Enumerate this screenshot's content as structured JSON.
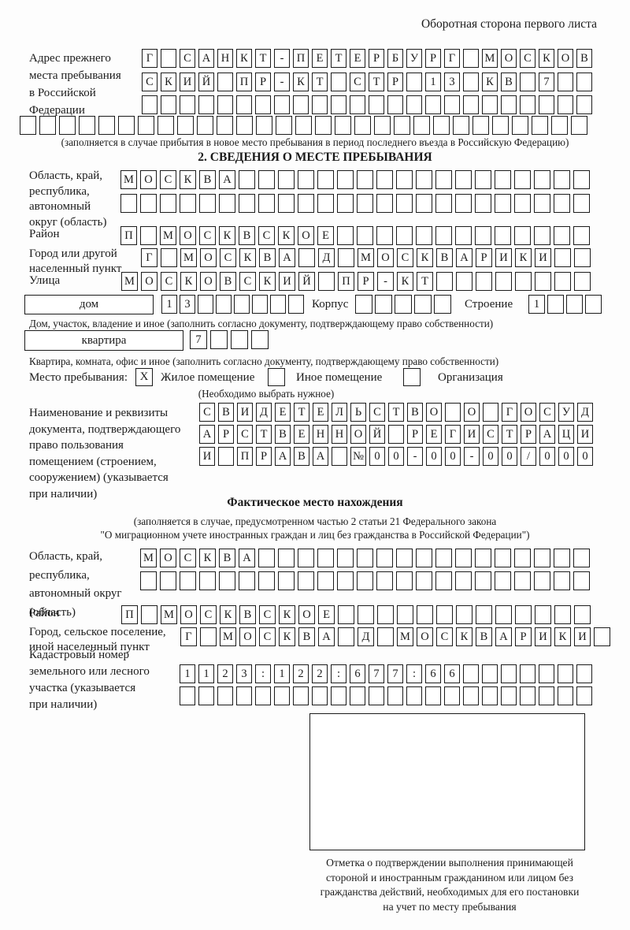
{
  "colors": {
    "ink": "#1b1b1b",
    "paper": "#fdfdfd"
  },
  "header_note": "Оборотная сторона первого листа",
  "prev_address": {
    "label_lines": [
      "Адрес прежнего",
      "места пребывания",
      "в Российской",
      "Федерации"
    ],
    "rows": [
      [
        "Г",
        "",
        "С",
        "А",
        "Н",
        "К",
        "Т",
        "-",
        "П",
        "Е",
        "Т",
        "Е",
        "Р",
        "Б",
        "У",
        "Р",
        "Г",
        "",
        "М",
        "О",
        "С",
        "К",
        "О",
        "В"
      ],
      [
        "С",
        "К",
        "И",
        "Й",
        "",
        "П",
        "Р",
        "-",
        "К",
        "Т",
        "",
        "С",
        "Т",
        "Р",
        "",
        "1",
        "3",
        "",
        "К",
        "В",
        "",
        "7",
        "",
        ""
      ],
      [
        "",
        "",
        "",
        "",
        "",
        "",
        "",
        "",
        "",
        "",
        "",
        "",
        "",
        "",
        "",
        "",
        "",
        "",
        "",
        "",
        "",
        "",
        "",
        ""
      ],
      [
        "",
        "",
        "",
        "",
        "",
        "",
        "",
        "",
        "",
        "",
        "",
        "",
        "",
        "",
        "",
        "",
        "",
        "",
        "",
        "",
        "",
        "",
        "",
        "",
        "",
        "",
        "",
        "",
        ""
      ]
    ],
    "caption": "(заполняется в случае прибытия в новое место пребывания в период последнего въезда в Российскую Федерацию)"
  },
  "section2": {
    "title": "2. СВЕДЕНИЯ О МЕСТЕ ПРЕБЫВАНИЯ",
    "region": {
      "label_lines": [
        "Область, край,",
        "республика,",
        "автономный",
        "округ (область)"
      ],
      "rows": [
        [
          "М",
          "О",
          "С",
          "К",
          "В",
          "А",
          "",
          "",
          "",
          "",
          "",
          "",
          "",
          "",
          "",
          "",
          "",
          "",
          "",
          "",
          "",
          "",
          "",
          ""
        ],
        [
          "",
          "",
          "",
          "",
          "",
          "",
          "",
          "",
          "",
          "",
          "",
          "",
          "",
          "",
          "",
          "",
          "",
          "",
          "",
          "",
          "",
          "",
          "",
          ""
        ]
      ]
    },
    "district": {
      "label": "Район",
      "row": [
        "П",
        "",
        "М",
        "О",
        "С",
        "К",
        "В",
        "С",
        "К",
        "О",
        "Е",
        "",
        "",
        "",
        "",
        "",
        "",
        "",
        "",
        "",
        "",
        "",
        "",
        ""
      ]
    },
    "city": {
      "label_lines": [
        "Город или другой",
        "населенный пункт"
      ],
      "row": [
        "Г",
        "",
        "М",
        "О",
        "С",
        "К",
        "В",
        "А",
        "",
        "Д",
        "",
        "М",
        "О",
        "С",
        "К",
        "В",
        "А",
        "Р",
        "И",
        "К",
        "И",
        "",
        ""
      ]
    },
    "street": {
      "label": "Улица",
      "row": [
        "М",
        "О",
        "С",
        "К",
        "О",
        "В",
        "С",
        "К",
        "И",
        "Й",
        "",
        "П",
        "Р",
        "-",
        "К",
        "Т",
        "",
        "",
        "",
        "",
        "",
        "",
        "",
        ""
      ]
    },
    "house": {
      "box_label": "дом",
      "cells": [
        "1",
        "3",
        "",
        "",
        "",
        "",
        "",
        ""
      ],
      "korpus_label": "Корпус",
      "korpus_cells": [
        "",
        "",
        "",
        "",
        ""
      ],
      "stroenie_label": "Строение",
      "stroenie_cells": [
        "1",
        "",
        "",
        ""
      ]
    },
    "house_caption": "Дом, участок, владение и иное (заполнить согласно документу, подтверждающему право собственности)",
    "apartment": {
      "box_label": "квартира",
      "cells": [
        "7",
        "",
        "",
        ""
      ]
    },
    "apartment_caption": "Квартира, комната, офис и иное (заполнить согласно документу, подтверждающему право собственности)",
    "stay_place": {
      "label": "Место пребывания:",
      "options": [
        {
          "label": "Жилое помещение",
          "value": "X"
        },
        {
          "label": "Иное помещение",
          "value": ""
        },
        {
          "label": "Организация",
          "value": ""
        }
      ],
      "note": "(Необходимо выбрать нужное)"
    },
    "document": {
      "label_lines": [
        "Наименование и реквизиты",
        "документа, подтверждающего",
        "право пользования",
        "помещением (строением,",
        "сооружением) (указывается",
        "при наличии)"
      ],
      "rows": [
        [
          "С",
          "В",
          "И",
          "Д",
          "Е",
          "Т",
          "Е",
          "Л",
          "Ь",
          "С",
          "Т",
          "В",
          "О",
          "",
          "О",
          "",
          "Г",
          "О",
          "С",
          "У",
          "Д"
        ],
        [
          "А",
          "Р",
          "С",
          "Т",
          "В",
          "Е",
          "Н",
          "Н",
          "О",
          "Й",
          "",
          "Р",
          "Е",
          "Г",
          "И",
          "С",
          "Т",
          "Р",
          "А",
          "Ц",
          "И"
        ],
        [
          "И",
          "",
          "П",
          "Р",
          "А",
          "В",
          "А",
          "",
          "№",
          "0",
          "0",
          "-",
          "0",
          "0",
          "-",
          "0",
          "0",
          "/",
          "0",
          "0",
          "0"
        ]
      ]
    }
  },
  "actual_location": {
    "title": "Фактическое место нахождения",
    "caption_lines": [
      "(заполняется в случае, предусмотренном частью 2 статьи 21 Федерального закона",
      "\"О миграционном учете иностранных граждан и лиц без гражданства в Российской Федерации\")"
    ],
    "region": {
      "label_lines": [
        "Область, край,",
        "республика,",
        "автономный округ",
        "(область)"
      ],
      "rows": [
        [
          "М",
          "О",
          "С",
          "К",
          "В",
          "А",
          "",
          "",
          "",
          "",
          "",
          "",
          "",
          "",
          "",
          "",
          "",
          "",
          "",
          "",
          "",
          "",
          ""
        ],
        [
          "",
          "",
          "",
          "",
          "",
          "",
          "",
          "",
          "",
          "",
          "",
          "",
          "",
          "",
          "",
          "",
          "",
          "",
          "",
          "",
          "",
          "",
          ""
        ]
      ]
    },
    "district": {
      "label": "Район",
      "row": [
        "П",
        "",
        "М",
        "О",
        "С",
        "К",
        "В",
        "С",
        "К",
        "О",
        "Е",
        "",
        "",
        "",
        "",
        "",
        "",
        "",
        "",
        "",
        "",
        "",
        "",
        ""
      ]
    },
    "city": {
      "label_lines": [
        "Город, сельское поселение,",
        "иной населенный пункт"
      ],
      "row": [
        "Г",
        "",
        "М",
        "О",
        "С",
        "К",
        "В",
        "А",
        "",
        "Д",
        "",
        "М",
        "О",
        "С",
        "К",
        "В",
        "А",
        "Р",
        "И",
        "К",
        "И",
        ""
      ]
    },
    "cadastral": {
      "label_lines": [
        "Кадастровый номер",
        "земельного или лесного",
        "участка (указывается",
        "при наличии)"
      ],
      "rows": [
        [
          "1",
          "1",
          "2",
          "3",
          ":",
          "1",
          "2",
          "2",
          ":",
          "6",
          "7",
          "7",
          ":",
          "6",
          "6",
          "",
          "",
          "",
          "",
          "",
          "",
          ""
        ],
        [
          "",
          "",
          "",
          "",
          "",
          "",
          "",
          "",
          "",
          "",
          "",
          "",
          "",
          "",
          "",
          "",
          "",
          "",
          "",
          "",
          "",
          ""
        ]
      ]
    },
    "stamp_caption_lines": [
      "Отметка о подтверждении выполнения принимающей",
      "стороной и иностранным гражданином или лицом без",
      "гражданства действий, необходимых для его постановки",
      "на учет по месту пребывания"
    ]
  }
}
